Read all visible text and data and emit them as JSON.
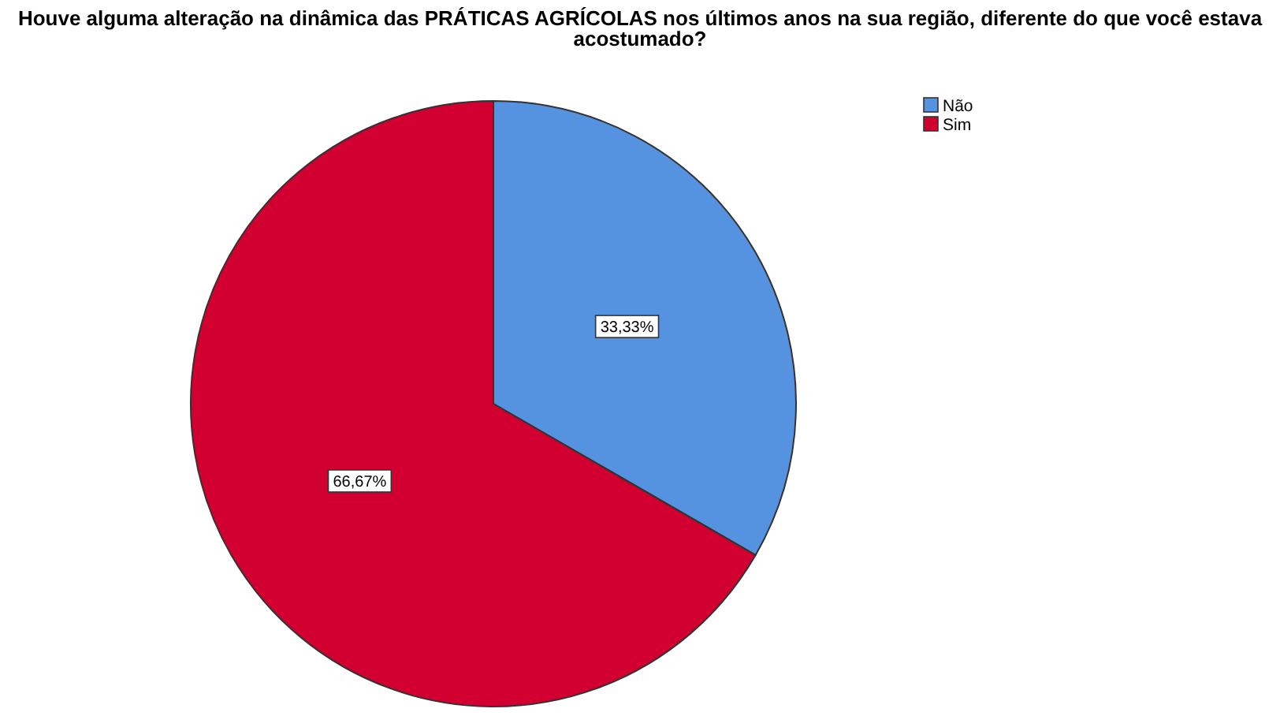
{
  "chart_data": {
    "type": "pie",
    "title": "Houve alguma alteração na dinâmica das PRÁTICAS AGRÍCOLAS nos últimos anos na sua região, diferente do que você estava acostumado?",
    "categories": [
      "Não",
      "Sim"
    ],
    "values": [
      33.33,
      66.67
    ],
    "colors": [
      "#5592e0",
      "#d10030"
    ],
    "value_labels": [
      "33,33%",
      "66,67%"
    ],
    "legend": "top right"
  }
}
